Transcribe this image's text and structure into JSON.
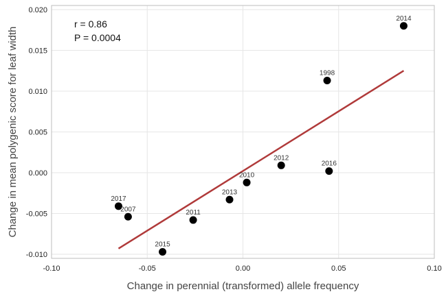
{
  "chart_data": {
    "type": "scatter",
    "xlabel": "Change in perennial (transformed) allele frequency",
    "ylabel": "Change in mean polygenic score for leaf width",
    "xlim": [
      -0.1,
      0.1
    ],
    "ylim": [
      -0.0105,
      0.0205
    ],
    "xticks": [
      -0.1,
      -0.05,
      0.0,
      0.05,
      0.1
    ],
    "xtick_labels": [
      "-0.10",
      "-0.05",
      "0.00",
      "0.05",
      "0.10"
    ],
    "yticks": [
      -0.01,
      -0.005,
      0.0,
      0.005,
      0.01,
      0.015,
      0.02
    ],
    "ytick_labels": [
      "-0.010",
      "-0.005",
      "0.000",
      "0.005",
      "0.010",
      "0.015",
      "0.020"
    ],
    "grid": true,
    "annotations": [
      "r = 0.86",
      "P = 0.0004"
    ],
    "points": [
      {
        "label": "2014",
        "x": 0.084,
        "y": 0.018
      },
      {
        "label": "1998",
        "x": 0.044,
        "y": 0.0113
      },
      {
        "label": "2012",
        "x": 0.02,
        "y": 0.0009
      },
      {
        "label": "2016",
        "x": 0.045,
        "y": 0.0002
      },
      {
        "label": "2010",
        "x": 0.002,
        "y": -0.0012
      },
      {
        "label": "2013",
        "x": -0.007,
        "y": -0.0033
      },
      {
        "label": "2011",
        "x": -0.026,
        "y": -0.0058
      },
      {
        "label": "2017",
        "x": -0.065,
        "y": -0.0041
      },
      {
        "label": "2007",
        "x": -0.06,
        "y": -0.0054
      },
      {
        "label": "2015",
        "x": -0.042,
        "y": -0.0097
      }
    ],
    "trendline": {
      "x": [
        -0.065,
        0.084
      ],
      "y": [
        -0.0093,
        0.0125
      ]
    },
    "colors": {
      "points": "#000000",
      "trendline": "#b03a3a",
      "grid": "#e6e6e6",
      "frame": "#bdbdbd"
    }
  }
}
